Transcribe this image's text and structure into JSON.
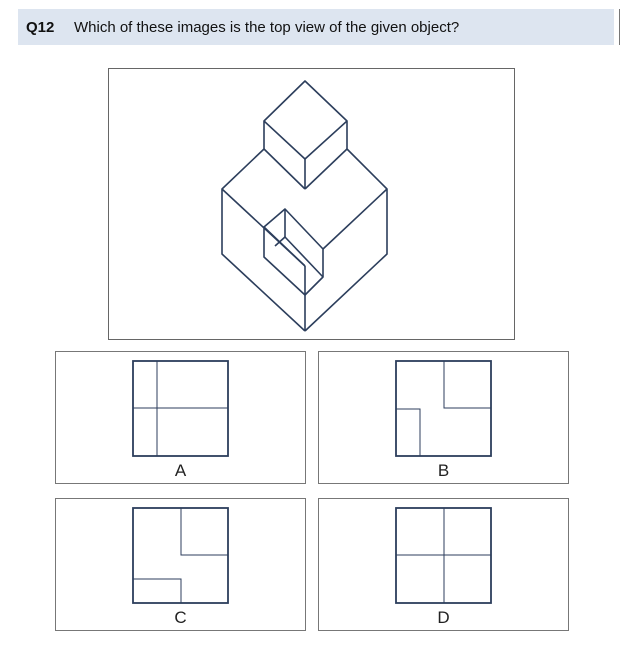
{
  "question": {
    "number": "Q12",
    "text": "Which of these images is the top view of the given object?"
  },
  "options": [
    {
      "key": "a",
      "label": "A"
    },
    {
      "key": "b",
      "label": "B"
    },
    {
      "key": "c",
      "label": "C"
    },
    {
      "key": "d",
      "label": "D"
    }
  ],
  "colors": {
    "header_bg": "#dde5f0",
    "drawing_stroke": "#2c3e5c"
  }
}
